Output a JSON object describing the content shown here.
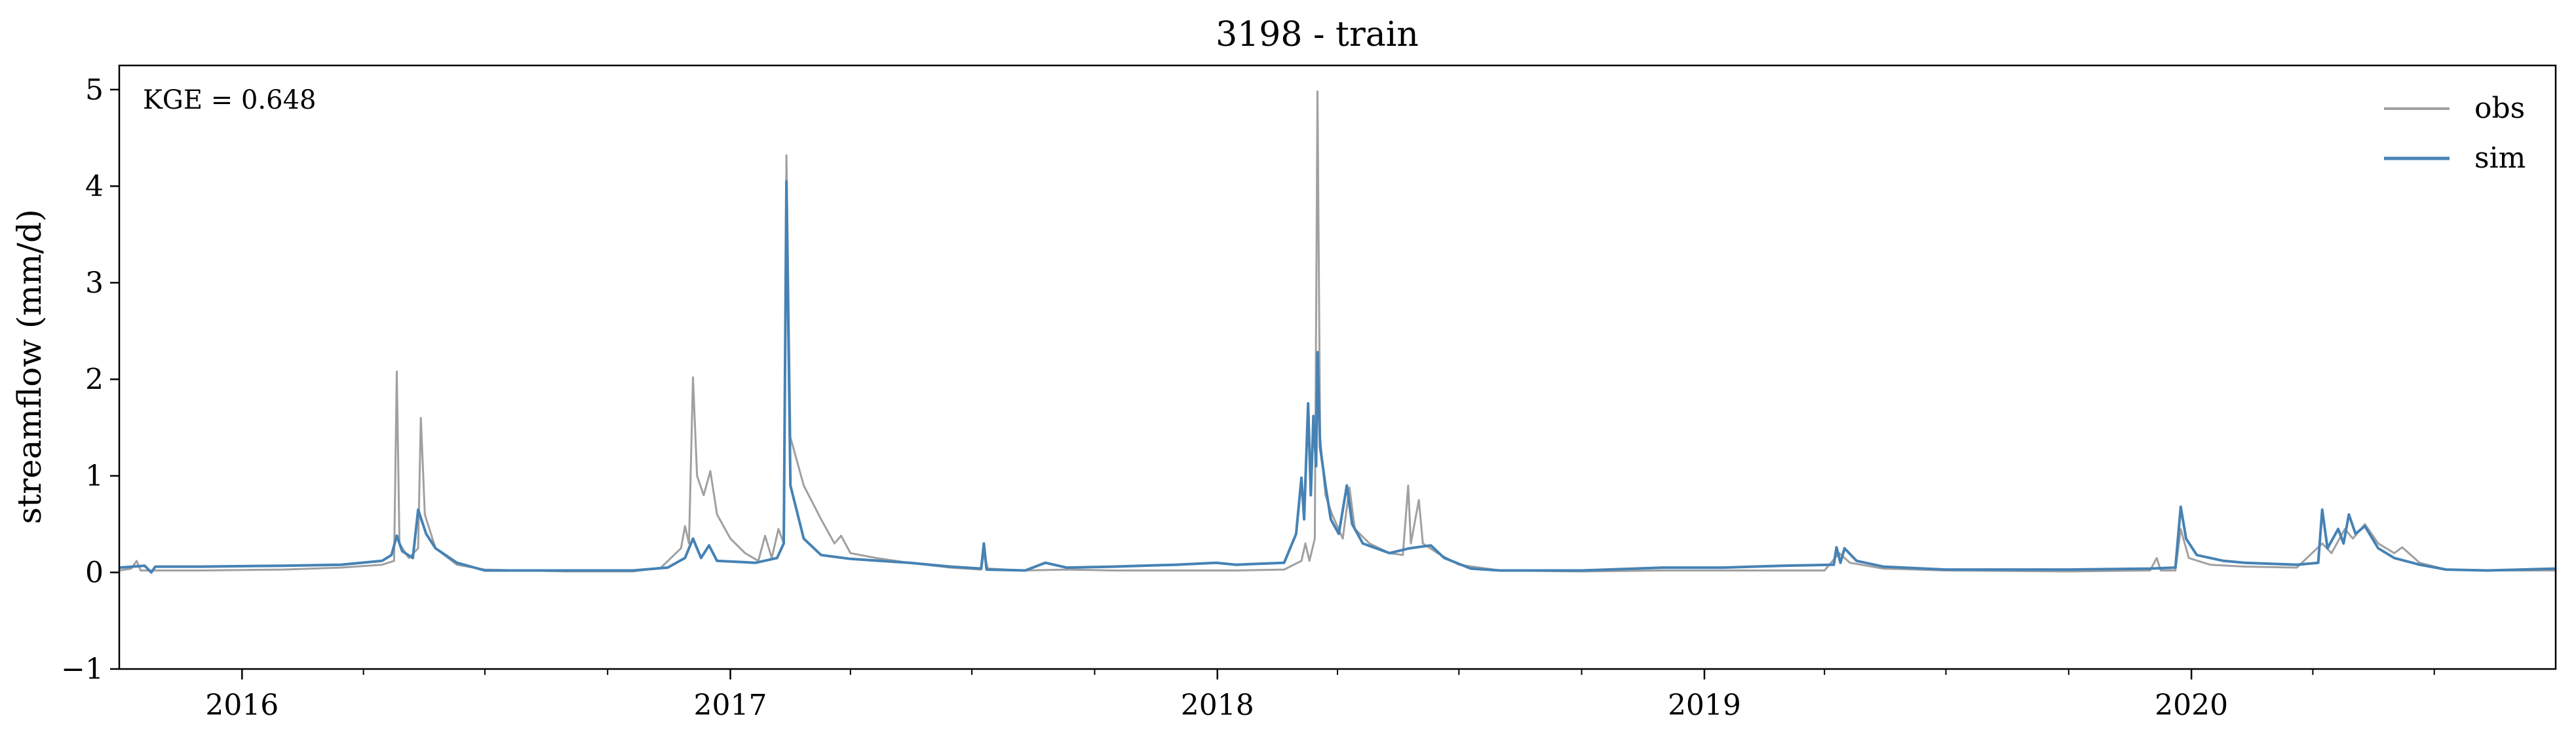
{
  "chart_data": {
    "type": "line",
    "title": "3198 - train",
    "xlabel": "",
    "ylabel": "streamflow (mm/d)",
    "xlim": [
      "2015-10-01",
      "2020-09-30"
    ],
    "ylim": [
      -1,
      5.25
    ],
    "yticks": [
      -1,
      0,
      1,
      2,
      3,
      4,
      5
    ],
    "ytick_labels": [
      "−1",
      "0",
      "1",
      "2",
      "3",
      "4",
      "5"
    ],
    "xticks": [
      "2016-01-01",
      "2017-01-01",
      "2018-01-01",
      "2019-01-01",
      "2020-01-01"
    ],
    "xtick_labels": [
      "2016",
      "2017",
      "2018",
      "2019",
      "2020"
    ],
    "grid": false,
    "legend_position": "top-right",
    "annotation": "KGE = 0.648",
    "colors": {
      "obs": "#a0a0a0",
      "sim": "#4682b4"
    },
    "series": [
      {
        "name": "obs",
        "points": [
          [
            "2015-10-01",
            0.02
          ],
          [
            "2015-10-10",
            0.04
          ],
          [
            "2015-10-14",
            0.12
          ],
          [
            "2015-10-17",
            0.02
          ],
          [
            "2015-12-01",
            0.02
          ],
          [
            "2016-02-01",
            0.03
          ],
          [
            "2016-03-15",
            0.05
          ],
          [
            "2016-04-15",
            0.08
          ],
          [
            "2016-04-24",
            0.12
          ],
          [
            "2016-04-26",
            2.08
          ],
          [
            "2016-04-28",
            0.3
          ],
          [
            "2016-05-05",
            0.15
          ],
          [
            "2016-05-12",
            0.25
          ],
          [
            "2016-05-14",
            1.6
          ],
          [
            "2016-05-17",
            0.6
          ],
          [
            "2016-05-25",
            0.25
          ],
          [
            "2016-06-10",
            0.08
          ],
          [
            "2016-07-01",
            0.03
          ],
          [
            "2016-09-01",
            0.01
          ],
          [
            "2016-10-20",
            0.01
          ],
          [
            "2016-11-10",
            0.05
          ],
          [
            "2016-11-25",
            0.25
          ],
          [
            "2016-11-28",
            0.48
          ],
          [
            "2016-12-01",
            0.3
          ],
          [
            "2016-12-04",
            2.02
          ],
          [
            "2016-12-07",
            1.0
          ],
          [
            "2016-12-12",
            0.8
          ],
          [
            "2016-12-17",
            1.05
          ],
          [
            "2016-12-22",
            0.6
          ],
          [
            "2017-01-01",
            0.35
          ],
          [
            "2017-01-12",
            0.2
          ],
          [
            "2017-01-22",
            0.12
          ],
          [
            "2017-01-27",
            0.38
          ],
          [
            "2017-02-01",
            0.15
          ],
          [
            "2017-02-06",
            0.45
          ],
          [
            "2017-02-10",
            0.3
          ],
          [
            "2017-02-12",
            4.32
          ],
          [
            "2017-02-15",
            1.4
          ],
          [
            "2017-02-25",
            0.9
          ],
          [
            "2017-03-10",
            0.55
          ],
          [
            "2017-03-20",
            0.3
          ],
          [
            "2017-03-25",
            0.38
          ],
          [
            "2017-04-01",
            0.2
          ],
          [
            "2017-04-20",
            0.15
          ],
          [
            "2017-05-15",
            0.1
          ],
          [
            "2017-06-15",
            0.05
          ],
          [
            "2017-07-08",
            0.03
          ],
          [
            "2017-07-10",
            0.2
          ],
          [
            "2017-07-13",
            0.04
          ],
          [
            "2017-08-10",
            0.02
          ],
          [
            "2017-09-10",
            0.03
          ],
          [
            "2017-10-15",
            0.02
          ],
          [
            "2017-12-01",
            0.02
          ],
          [
            "2018-01-15",
            0.02
          ],
          [
            "2018-02-20",
            0.03
          ],
          [
            "2018-03-05",
            0.12
          ],
          [
            "2018-03-08",
            0.3
          ],
          [
            "2018-03-11",
            0.12
          ],
          [
            "2018-03-15",
            0.35
          ],
          [
            "2018-03-17",
            4.98
          ],
          [
            "2018-03-19",
            1.4
          ],
          [
            "2018-03-23",
            0.8
          ],
          [
            "2018-03-28",
            0.6
          ],
          [
            "2018-04-05",
            0.35
          ],
          [
            "2018-04-10",
            0.88
          ],
          [
            "2018-04-14",
            0.45
          ],
          [
            "2018-04-25",
            0.3
          ],
          [
            "2018-05-10",
            0.2
          ],
          [
            "2018-05-20",
            0.18
          ],
          [
            "2018-05-24",
            0.9
          ],
          [
            "2018-05-26",
            0.3
          ],
          [
            "2018-06-01",
            0.75
          ],
          [
            "2018-06-04",
            0.3
          ],
          [
            "2018-06-15",
            0.2
          ],
          [
            "2018-07-01",
            0.08
          ],
          [
            "2018-08-01",
            0.02
          ],
          [
            "2018-10-01",
            0.01
          ],
          [
            "2018-12-01",
            0.02
          ],
          [
            "2019-01-15",
            0.02
          ],
          [
            "2019-04-01",
            0.02
          ],
          [
            "2019-04-12",
            0.2
          ],
          [
            "2019-04-20",
            0.1
          ],
          [
            "2019-05-15",
            0.04
          ],
          [
            "2019-07-01",
            0.02
          ],
          [
            "2019-10-01",
            0.01
          ],
          [
            "2019-12-01",
            0.02
          ],
          [
            "2019-12-06",
            0.15
          ],
          [
            "2019-12-09",
            0.02
          ],
          [
            "2019-12-20",
            0.02
          ],
          [
            "2019-12-24",
            0.45
          ],
          [
            "2019-12-30",
            0.15
          ],
          [
            "2020-01-15",
            0.08
          ],
          [
            "2020-02-10",
            0.06
          ],
          [
            "2020-03-20",
            0.05
          ],
          [
            "2020-04-08",
            0.3
          ],
          [
            "2020-04-15",
            0.2
          ],
          [
            "2020-04-25",
            0.45
          ],
          [
            "2020-05-01",
            0.35
          ],
          [
            "2020-05-10",
            0.5
          ],
          [
            "2020-05-20",
            0.3
          ],
          [
            "2020-06-01",
            0.2
          ],
          [
            "2020-06-07",
            0.26
          ],
          [
            "2020-06-20",
            0.1
          ],
          [
            "2020-07-10",
            0.03
          ],
          [
            "2020-08-10",
            0.02
          ],
          [
            "2020-09-30",
            0.02
          ]
        ]
      },
      {
        "name": "sim",
        "points": [
          [
            "2015-10-01",
            0.05
          ],
          [
            "2015-10-20",
            0.07
          ],
          [
            "2015-10-25",
            0.0
          ],
          [
            "2015-10-28",
            0.06
          ],
          [
            "2015-12-01",
            0.06
          ],
          [
            "2016-02-01",
            0.07
          ],
          [
            "2016-03-15",
            0.08
          ],
          [
            "2016-04-15",
            0.12
          ],
          [
            "2016-04-22",
            0.18
          ],
          [
            "2016-04-26",
            0.38
          ],
          [
            "2016-04-30",
            0.22
          ],
          [
            "2016-05-08",
            0.15
          ],
          [
            "2016-05-12",
            0.65
          ],
          [
            "2016-05-18",
            0.4
          ],
          [
            "2016-05-25",
            0.25
          ],
          [
            "2016-06-10",
            0.1
          ],
          [
            "2016-07-01",
            0.02
          ],
          [
            "2016-09-01",
            0.02
          ],
          [
            "2016-10-20",
            0.02
          ],
          [
            "2016-11-15",
            0.05
          ],
          [
            "2016-11-28",
            0.15
          ],
          [
            "2016-12-04",
            0.35
          ],
          [
            "2016-12-10",
            0.15
          ],
          [
            "2016-12-16",
            0.28
          ],
          [
            "2016-12-22",
            0.12
          ],
          [
            "2017-01-20",
            0.1
          ],
          [
            "2017-02-05",
            0.15
          ],
          [
            "2017-02-10",
            0.3
          ],
          [
            "2017-02-12",
            4.05
          ],
          [
            "2017-02-15",
            0.9
          ],
          [
            "2017-02-25",
            0.35
          ],
          [
            "2017-03-10",
            0.18
          ],
          [
            "2017-04-01",
            0.14
          ],
          [
            "2017-05-15",
            0.1
          ],
          [
            "2017-06-15",
            0.06
          ],
          [
            "2017-07-08",
            0.04
          ],
          [
            "2017-07-10",
            0.3
          ],
          [
            "2017-07-12",
            0.03
          ],
          [
            "2017-08-10",
            0.02
          ],
          [
            "2017-08-25",
            0.1
          ],
          [
            "2017-09-10",
            0.05
          ],
          [
            "2017-10-15",
            0.06
          ],
          [
            "2017-12-01",
            0.08
          ],
          [
            "2017-12-31",
            0.1
          ],
          [
            "2018-01-15",
            0.08
          ],
          [
            "2018-02-20",
            0.1
          ],
          [
            "2018-03-01",
            0.4
          ],
          [
            "2018-03-05",
            0.98
          ],
          [
            "2018-03-07",
            0.55
          ],
          [
            "2018-03-10",
            1.75
          ],
          [
            "2018-03-12",
            0.8
          ],
          [
            "2018-03-14",
            1.62
          ],
          [
            "2018-03-16",
            1.1
          ],
          [
            "2018-03-17",
            2.28
          ],
          [
            "2018-03-19",
            1.3
          ],
          [
            "2018-03-23",
            0.9
          ],
          [
            "2018-03-27",
            0.55
          ],
          [
            "2018-04-02",
            0.4
          ],
          [
            "2018-04-08",
            0.9
          ],
          [
            "2018-04-12",
            0.5
          ],
          [
            "2018-04-20",
            0.3
          ],
          [
            "2018-05-10",
            0.2
          ],
          [
            "2018-05-25",
            0.25
          ],
          [
            "2018-06-10",
            0.28
          ],
          [
            "2018-06-20",
            0.15
          ],
          [
            "2018-07-10",
            0.04
          ],
          [
            "2018-08-01",
            0.02
          ],
          [
            "2018-10-01",
            0.02
          ],
          [
            "2018-12-01",
            0.05
          ],
          [
            "2019-01-15",
            0.05
          ],
          [
            "2019-03-01",
            0.07
          ],
          [
            "2019-04-08",
            0.08
          ],
          [
            "2019-04-10",
            0.26
          ],
          [
            "2019-04-13",
            0.1
          ],
          [
            "2019-04-16",
            0.25
          ],
          [
            "2019-04-25",
            0.12
          ],
          [
            "2019-05-15",
            0.06
          ],
          [
            "2019-07-01",
            0.03
          ],
          [
            "2019-10-01",
            0.03
          ],
          [
            "2019-12-01",
            0.04
          ],
          [
            "2019-12-20",
            0.05
          ],
          [
            "2019-12-24",
            0.68
          ],
          [
            "2019-12-28",
            0.35
          ],
          [
            "2020-01-05",
            0.18
          ],
          [
            "2020-01-25",
            0.12
          ],
          [
            "2020-02-10",
            0.1
          ],
          [
            "2020-03-20",
            0.08
          ],
          [
            "2020-04-05",
            0.1
          ],
          [
            "2020-04-08",
            0.65
          ],
          [
            "2020-04-12",
            0.25
          ],
          [
            "2020-04-20",
            0.45
          ],
          [
            "2020-04-24",
            0.3
          ],
          [
            "2020-04-28",
            0.6
          ],
          [
            "2020-05-03",
            0.4
          ],
          [
            "2020-05-10",
            0.48
          ],
          [
            "2020-05-20",
            0.25
          ],
          [
            "2020-06-01",
            0.15
          ],
          [
            "2020-06-20",
            0.08
          ],
          [
            "2020-07-10",
            0.03
          ],
          [
            "2020-08-10",
            0.02
          ],
          [
            "2020-09-30",
            0.04
          ]
        ]
      }
    ]
  }
}
